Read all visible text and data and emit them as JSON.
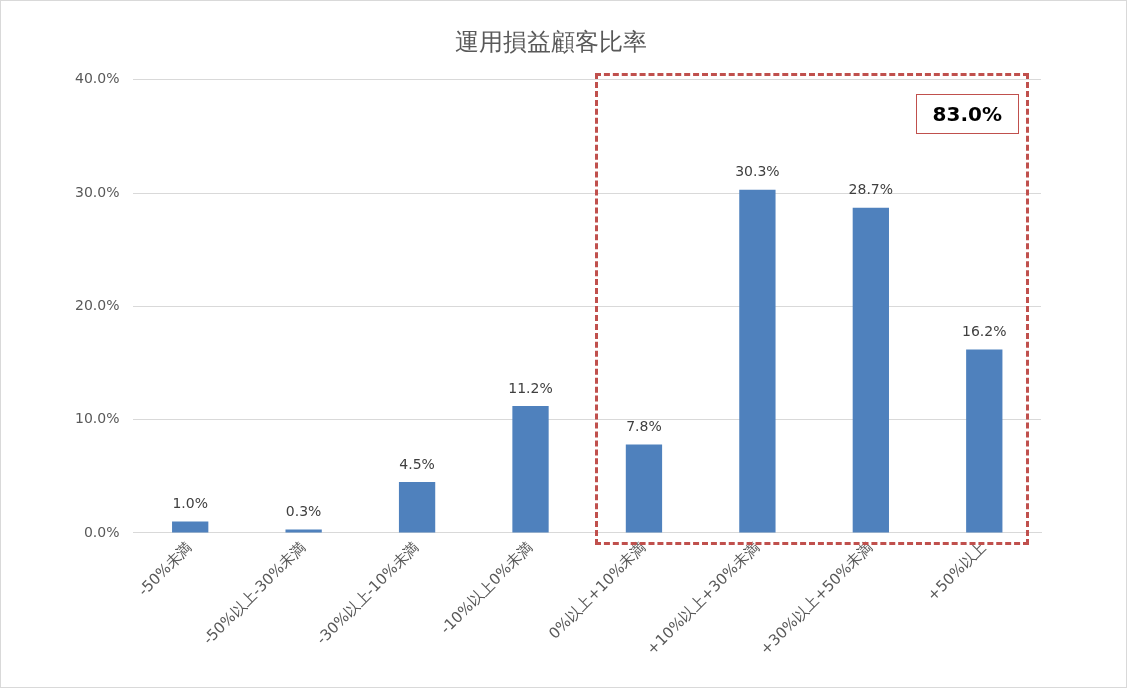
{
  "chart_data": {
    "type": "bar",
    "title": "運用損益顧客比率",
    "categories": [
      "-50%未満",
      "-50%以上-30%未満",
      "-30%以上-10%未満",
      "-10%以上0%未満",
      "0%以上+10%未満",
      "+10%以上+30%未満",
      "+30%以上+50%未満",
      "+50%以上"
    ],
    "values": [
      1.0,
      0.3,
      4.5,
      11.2,
      7.8,
      30.3,
      28.7,
      16.2
    ],
    "value_labels": [
      "1.0%",
      "0.3%",
      "4.5%",
      "11.2%",
      "7.8%",
      "30.3%",
      "28.7%",
      "16.2%"
    ],
    "color": "#4f81bd",
    "ylim": [
      0,
      40
    ],
    "yticks": [
      {
        "value": 0,
        "label": "0.0%"
      },
      {
        "value": 10,
        "label": "10.0%"
      },
      {
        "value": 20,
        "label": "20.0%"
      },
      {
        "value": 30,
        "label": "30.0%"
      },
      {
        "value": 40,
        "label": "40.0%"
      }
    ],
    "grid": "y",
    "legend": false,
    "annotations": [
      "83.0%"
    ]
  }
}
